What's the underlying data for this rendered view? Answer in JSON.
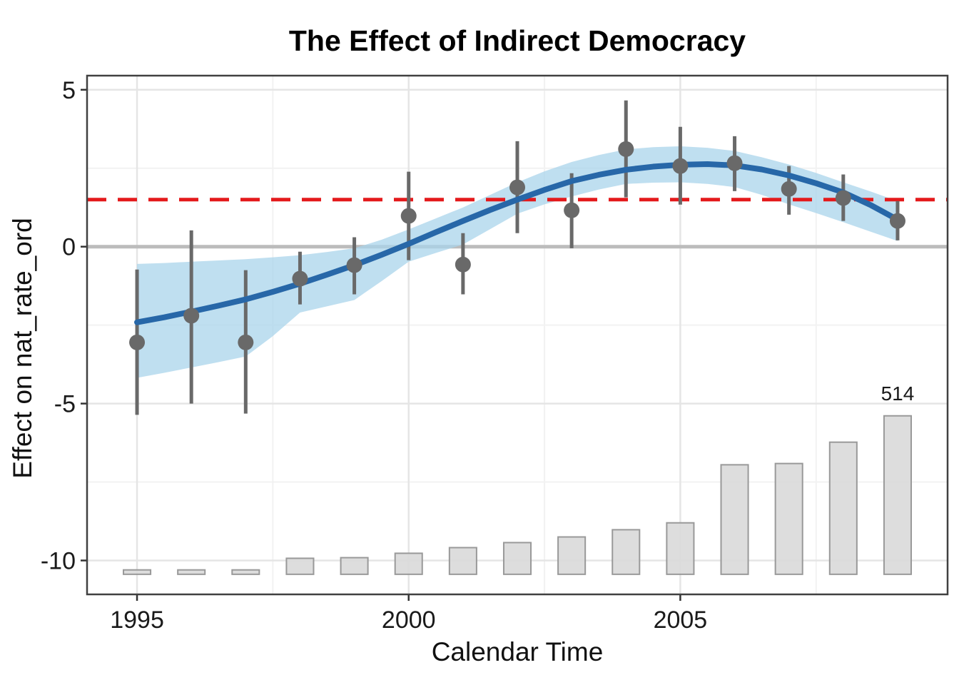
{
  "chart_data": {
    "type": "line",
    "subtypes": [
      "scatter",
      "errorbar",
      "area-ribbon",
      "bar-histogram"
    ],
    "title": "The Effect of Indirect Democracy",
    "xlabel": "Calendar Time",
    "ylabel": "Effect on nat_rate_ord",
    "xlim": [
      1994.08,
      2009.92
    ],
    "ylim": [
      -11.08,
      5.45
    ],
    "x_ticks": [
      1995,
      2000,
      2005
    ],
    "x_minor_ticks": [
      1997.5,
      2002.5,
      2007.5
    ],
    "y_ticks": [
      5,
      0,
      -5,
      -10
    ],
    "y_minor_ticks": [
      2.5,
      -2.5,
      -7.5
    ],
    "grid": true,
    "legend": false,
    "reference_lines": {
      "zero_line": 0,
      "red_dashed_line": 1.5
    },
    "estimates": [
      {
        "year": 1995,
        "estimate": -3.05,
        "ci_low": -5.36,
        "ci_high": -0.73
      },
      {
        "year": 1996,
        "estimate": -2.2,
        "ci_low": -5.0,
        "ci_high": 0.52
      },
      {
        "year": 1997,
        "estimate": -3.05,
        "ci_low": -5.32,
        "ci_high": -0.75
      },
      {
        "year": 1998,
        "estimate": -1.02,
        "ci_low": -1.84,
        "ci_high": -0.16
      },
      {
        "year": 1999,
        "estimate": -0.59,
        "ci_low": -1.52,
        "ci_high": 0.3
      },
      {
        "year": 2000,
        "estimate": 0.98,
        "ci_low": -0.43,
        "ci_high": 2.39
      },
      {
        "year": 2001,
        "estimate": -0.57,
        "ci_low": -1.52,
        "ci_high": 0.43
      },
      {
        "year": 2002,
        "estimate": 1.89,
        "ci_low": 0.43,
        "ci_high": 3.36
      },
      {
        "year": 2003,
        "estimate": 1.16,
        "ci_low": -0.05,
        "ci_high": 2.34
      },
      {
        "year": 2004,
        "estimate": 3.11,
        "ci_low": 1.57,
        "ci_high": 4.66
      },
      {
        "year": 2005,
        "estimate": 2.57,
        "ci_low": 1.34,
        "ci_high": 3.82
      },
      {
        "year": 2006,
        "estimate": 2.66,
        "ci_low": 1.77,
        "ci_high": 3.52
      },
      {
        "year": 2007,
        "estimate": 1.84,
        "ci_low": 1.02,
        "ci_high": 2.57
      },
      {
        "year": 2008,
        "estimate": 1.55,
        "ci_low": 0.82,
        "ci_high": 2.3
      },
      {
        "year": 2009,
        "estimate": 0.82,
        "ci_low": 0.2,
        "ci_high": 1.45
      }
    ],
    "smooth_line": {
      "x": [
        1995,
        1995.5,
        1996,
        1996.5,
        1997,
        1997.5,
        1998,
        1998.5,
        1999,
        1999.5,
        2000,
        2000.5,
        2001,
        2001.5,
        2002,
        2002.5,
        2003,
        2003.5,
        2004,
        2004.5,
        2005,
        2005.5,
        2006,
        2006.5,
        2007,
        2007.5,
        2008,
        2008.5,
        2009
      ],
      "y": [
        -2.41,
        -2.25,
        -2.07,
        -1.88,
        -1.68,
        -1.44,
        -1.18,
        -0.89,
        -0.59,
        -0.26,
        0.09,
        0.46,
        0.82,
        1.17,
        1.5,
        1.81,
        2.09,
        2.29,
        2.45,
        2.55,
        2.61,
        2.63,
        2.59,
        2.46,
        2.27,
        2.02,
        1.73,
        1.33,
        0.86
      ]
    },
    "confidence_band": {
      "x": [
        1995,
        1995.5,
        1996,
        1996.5,
        1997,
        1997.5,
        1998,
        1998.5,
        1999,
        1999.5,
        2000,
        2000.5,
        2001,
        2001.5,
        2002,
        2002.5,
        2003,
        2003.5,
        2004,
        2004.5,
        2005,
        2005.5,
        2006,
        2006.5,
        2007,
        2007.5,
        2008,
        2008.5,
        2009
      ],
      "upper": [
        -0.55,
        -0.52,
        -0.48,
        -0.44,
        -0.4,
        -0.34,
        -0.27,
        -0.17,
        -0.05,
        0.22,
        0.55,
        0.9,
        1.25,
        1.65,
        2.05,
        2.4,
        2.7,
        2.92,
        3.1,
        3.17,
        3.2,
        3.15,
        3.05,
        2.85,
        2.62,
        2.35,
        2.05,
        1.76,
        1.45
      ],
      "lower": [
        -4.18,
        -4.02,
        -3.85,
        -3.68,
        -3.5,
        -2.85,
        -2.1,
        -1.9,
        -1.7,
        -1.1,
        -0.48,
        -0.2,
        0.07,
        0.56,
        1.05,
        1.35,
        1.6,
        1.82,
        2.0,
        2.04,
        2.05,
        2.0,
        1.9,
        1.65,
        1.35,
        1.07,
        0.78,
        0.48,
        0.18
      ]
    },
    "obs_bars": {
      "baseline": -10.44,
      "bar_width_years": 0.5,
      "max_label": "514",
      "label_year": 2009,
      "bars": [
        {
          "year": 1995,
          "top": -10.3,
          "count_approx": 15
        },
        {
          "year": 1996,
          "top": -10.3,
          "count_approx": 15
        },
        {
          "year": 1997,
          "top": -10.3,
          "count_approx": 15
        },
        {
          "year": 1998,
          "top": -9.93,
          "count_approx": 52
        },
        {
          "year": 1999,
          "top": -9.91,
          "count_approx": 54
        },
        {
          "year": 2000,
          "top": -9.77,
          "count_approx": 68
        },
        {
          "year": 2001,
          "top": -9.59,
          "count_approx": 87
        },
        {
          "year": 2002,
          "top": -9.43,
          "count_approx": 103
        },
        {
          "year": 2003,
          "top": -9.25,
          "count_approx": 121
        },
        {
          "year": 2004,
          "top": -9.02,
          "count_approx": 144
        },
        {
          "year": 2005,
          "top": -8.8,
          "count_approx": 167
        },
        {
          "year": 2006,
          "top": -6.95,
          "count_approx": 355
        },
        {
          "year": 2007,
          "top": -6.91,
          "count_approx": 360
        },
        {
          "year": 2008,
          "top": -6.23,
          "count_approx": 429
        },
        {
          "year": 2009,
          "top": -5.39,
          "count_approx": 514
        }
      ]
    },
    "colors": {
      "smooth_line": "#2767a8",
      "ribbon_base": "#a9d4eb",
      "red_dashed": "#e41a1c",
      "point_gray": "#696969",
      "bar_fill": "#d9d9d9",
      "bar_stroke": "#999999",
      "zero_line": "#bcbcbc",
      "grid_major": "#e5e5e5",
      "grid_minor": "#f2f2f2",
      "panel_border": "#404040",
      "tick_text": "#1a1a1a"
    }
  }
}
